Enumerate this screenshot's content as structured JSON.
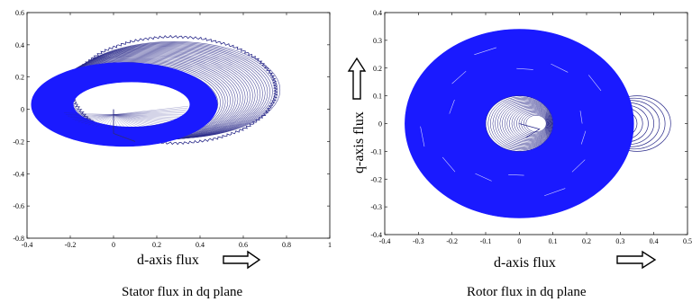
{
  "chart_data": [
    {
      "type": "line",
      "caption": "Stator flux in dq plane",
      "xlabel": "d-axis flux",
      "ylabel": "",
      "xlim": [
        -0.4,
        1.0
      ],
      "ylim": [
        -0.8,
        0.6
      ],
      "xticks": [
        "-0.4",
        "-0.2",
        "0",
        "0.2",
        "0.4",
        "0.6",
        "0.8",
        "1"
      ],
      "yticks": [
        "-0.8",
        "-0.6",
        "-0.4",
        "-0.2",
        "0",
        "0.2",
        "0.4",
        "0.6"
      ],
      "trajectory": {
        "start": [
          0.0,
          0.0
        ],
        "band_center_start": [
          0.05,
          0.03
        ],
        "band_center_end": [
          0.28,
          0.12
        ],
        "outer_loop": {
          "center": [
            0.28,
            0.12
          ],
          "rx": 0.47,
          "ry": 0.33
        },
        "steady_band": {
          "center": [
            0.05,
            0.03
          ],
          "rx_outer": 0.43,
          "ry_outer": 0.26,
          "rx_inner": 0.27,
          "ry_inner": 0.14
        },
        "color": "#1a1aff",
        "outer_color": "#2a2a8a"
      },
      "arrow": "right"
    },
    {
      "type": "line",
      "caption": "Rotor flux in dq plane",
      "xlabel": "d-axis flux",
      "ylabel": "q-axis flux",
      "xlim": [
        -0.4,
        0.5
      ],
      "ylim": [
        -0.4,
        0.4
      ],
      "xticks": [
        "-0.4",
        "-0.3",
        "-0.2",
        "-0.1",
        "0",
        "0.1",
        "0.2",
        "0.3",
        "0.4",
        "0.5"
      ],
      "yticks": [
        "-0.4",
        "-0.3",
        "-0.2",
        "-0.1",
        "0",
        "0.1",
        "0.2",
        "0.3",
        "0.4"
      ],
      "trajectory": {
        "start": [
          0.0,
          0.0
        ],
        "band_center": [
          0.0,
          0.0
        ],
        "steady_band": {
          "r_outer": 0.34,
          "r_inner": 0.1
        },
        "side_loops": {
          "center_x_from": 0.3,
          "center_x_to": 0.35,
          "r_from": 0.05,
          "r_to": 0.1
        },
        "color": "#1a1aff",
        "outer_color": "#2a2a8a"
      },
      "arrows": [
        "right",
        "up"
      ]
    }
  ]
}
